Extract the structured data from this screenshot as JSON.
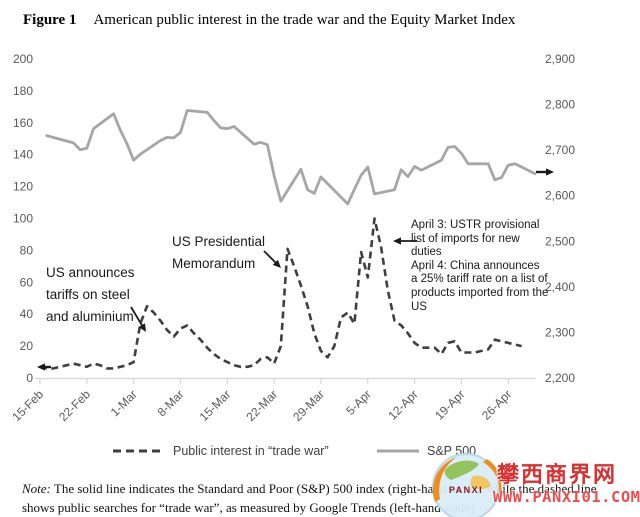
{
  "title": {
    "label": "Figure 1",
    "text": "American public interest in the trade war and the Equity Market Index"
  },
  "chart_data": {
    "type": "line",
    "grid": false,
    "x_tick_labels": [
      "15-Feb",
      "22-Feb",
      "1-Mar",
      "8-Mar",
      "15-Mar",
      "22-Mar",
      "29-Mar",
      "5-Apr",
      "12-Apr",
      "19-Apr",
      "26-Apr"
    ],
    "ylim_left": [
      0,
      200
    ],
    "ylim_right": [
      2200,
      2900
    ],
    "left_tick_step": 20,
    "right_tick_step": 100,
    "colors": {
      "axis_line": "#d6d6d6",
      "axis_text": "#595959",
      "annotation": "#1a1a1a"
    },
    "series": [
      {
        "name": "Public interest in “trade war”",
        "axis": "left",
        "line_style": "dashed",
        "color": "#3f3f3f",
        "start_date": "15 Feb",
        "frequency": "daily",
        "values": [
          7,
          6,
          6,
          7,
          8,
          9,
          8,
          7,
          9,
          8,
          6,
          6,
          7,
          8,
          10,
          34,
          45,
          41,
          36,
          30,
          26,
          31,
          33,
          28,
          24,
          19,
          15,
          12,
          10,
          8,
          7,
          7,
          8,
          12,
          13,
          9,
          20,
          81,
          70,
          58,
          45,
          28,
          17,
          13,
          20,
          38,
          41,
          34,
          79,
          63,
          100,
          82,
          55,
          36,
          33,
          28,
          22,
          19,
          19,
          19,
          15,
          22,
          23,
          16,
          16,
          16,
          17,
          18,
          24,
          23,
          22,
          21,
          20
        ]
      },
      {
        "name": "S&P 500",
        "axis": "right",
        "line_style": "solid",
        "color": "#a6a6a6",
        "dates": [
          "16 Feb",
          "20 Feb",
          "21 Feb",
          "22 Feb",
          "23 Feb",
          "26 Feb",
          "27 Feb",
          "28 Feb",
          "1 Mar",
          "2 Mar",
          "5 Mar",
          "6 Mar",
          "7 Mar",
          "8 Mar",
          "9 Mar",
          "12 Mar",
          "13 Mar",
          "14 Mar",
          "15 Mar",
          "16 Mar",
          "19 Mar",
          "20 Mar",
          "21 Mar",
          "22 Mar",
          "23 Mar",
          "26 Mar",
          "27 Mar",
          "28 Mar",
          "29 Mar",
          "2 Apr",
          "3 Apr",
          "4 Apr",
          "5 Apr",
          "6 Apr",
          "9 Apr",
          "10 Apr",
          "11 Apr",
          "12 Apr",
          "13 Apr",
          "16 Apr",
          "17 Apr",
          "18 Apr",
          "19 Apr",
          "20 Apr",
          "23 Apr",
          "24 Apr",
          "25 Apr",
          "26 Apr",
          "27 Apr",
          "30 Apr"
        ],
        "days": [
          1,
          5,
          6,
          7,
          8,
          11,
          12,
          13,
          14,
          15,
          18,
          19,
          20,
          21,
          22,
          25,
          26,
          27,
          28,
          29,
          32,
          33,
          34,
          35,
          36,
          39,
          40,
          41,
          42,
          46,
          47,
          48,
          49,
          50,
          53,
          54,
          55,
          56,
          57,
          60,
          61,
          62,
          63,
          64,
          67,
          68,
          69,
          70,
          71,
          74
        ],
        "values": [
          2732,
          2716,
          2701,
          2704,
          2747,
          2780,
          2744,
          2714,
          2678,
          2691,
          2721,
          2728,
          2727,
          2739,
          2787,
          2783,
          2765,
          2749,
          2747,
          2752,
          2713,
          2717,
          2712,
          2644,
          2588,
          2658,
          2613,
          2605,
          2641,
          2582,
          2614,
          2645,
          2663,
          2604,
          2613,
          2657,
          2642,
          2664,
          2656,
          2678,
          2706,
          2708,
          2693,
          2670,
          2670,
          2635,
          2640,
          2667,
          2670,
          2648
        ]
      }
    ],
    "annotations": [
      {
        "id": "tariffs",
        "text": "US announces tariffs on steel and aluminium",
        "arrow": {
          "from": [
            131,
            307
          ],
          "to": [
            146,
            332
          ],
          "weight": 1.8
        }
      },
      {
        "id": "memorandum",
        "text": "US Presidential Memorandum",
        "arrow": {
          "from": [
            264,
            251
          ],
          "to": [
            281,
            268
          ],
          "weight": 1.8
        }
      },
      {
        "id": "april",
        "lines": [
          "April 3: USTR provisional list of imports for new duties",
          "April 4: China announces a 25% tariff rate on a list of products imported from the US"
        ],
        "arrow": {
          "from": [
            417,
            241
          ],
          "to": [
            393,
            241
          ],
          "weight": 1.8
        }
      },
      {
        "id": "dashed-series-start-arrow",
        "arrow": {
          "from": [
            51,
            367
          ],
          "to": [
            37,
            367
          ],
          "weight": 2.4
        }
      },
      {
        "id": "sp500-series-end-arrow",
        "arrow": {
          "from": [
            536,
            172
          ],
          "to": [
            554,
            172
          ],
          "weight": 2.4
        }
      }
    ]
  },
  "legend": {
    "position": "bottom",
    "items": [
      {
        "label": "Public interest in “trade war”",
        "swatch": "dashed-line"
      },
      {
        "label": "S&P 500",
        "swatch": "solid-line"
      }
    ]
  },
  "note": {
    "label": "Note:",
    "text": "The solid line indicates the Standard and Poor (S&P) 500 index (right-hand scale), while the dashed line shows public searches for “trade war”, as measured by Google Trends (left-hand scale)."
  },
  "watermark": {
    "logo_text": "PANXI",
    "cjk": "攀西商界网",
    "url": "WWW.PANXI01.COM",
    "cjk_color": "#d93030",
    "url_color": "#ef4d4d"
  }
}
